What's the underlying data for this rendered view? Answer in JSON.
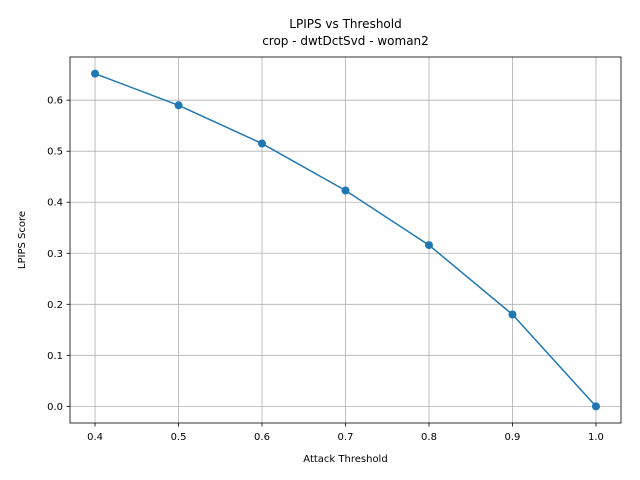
{
  "chart_data": {
    "type": "line",
    "title": "LPIPS vs Threshold",
    "subtitle": "crop - dwtDctSvd - woman2",
    "xlabel": "Attack Threshold",
    "ylabel": "LPIPS Score",
    "xlim": [
      0.37,
      1.03
    ],
    "ylim": [
      -0.0326,
      0.6846
    ],
    "xticks": [
      0.4,
      0.5,
      0.6,
      0.7,
      0.8,
      0.9,
      1.0
    ],
    "xtick_labels": [
      "0.4",
      "0.5",
      "0.6",
      "0.7",
      "0.8",
      "0.9",
      "1.0"
    ],
    "yticks": [
      0.0,
      0.1,
      0.2,
      0.3,
      0.4,
      0.5,
      0.6
    ],
    "ytick_labels": [
      "0.0",
      "0.1",
      "0.2",
      "0.3",
      "0.4",
      "0.5",
      "0.6"
    ],
    "grid": true,
    "series": [
      {
        "color": "#1f77b4",
        "marker": "circle",
        "x": [
          0.4,
          0.5,
          0.6,
          0.7,
          0.8,
          0.9,
          1.0
        ],
        "y": [
          0.652,
          0.59,
          0.515,
          0.423,
          0.316,
          0.18,
          0.0
        ]
      }
    ]
  }
}
